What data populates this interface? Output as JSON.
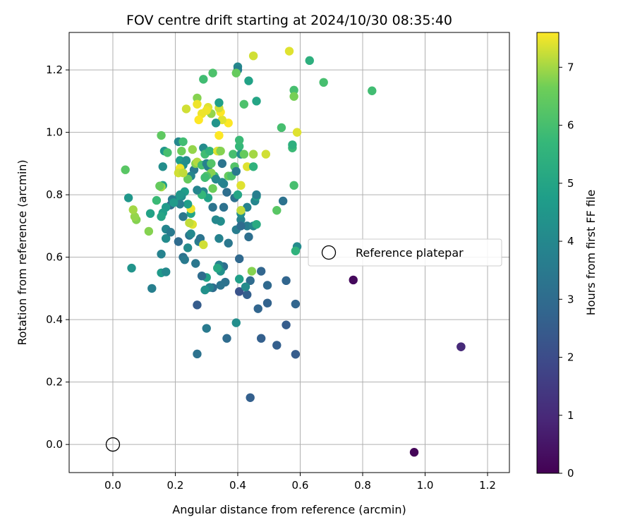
{
  "chart_data": {
    "type": "scatter",
    "title": "FOV centre drift starting at 2024/10/30 08:35:40",
    "xlabel": "Angular distance from reference (arcmin)",
    "ylabel": "Rotation from reference (arcmin)",
    "xlim": [
      -0.14,
      1.27
    ],
    "ylim": [
      -0.09,
      1.32
    ],
    "xticks": [
      0.0,
      0.2,
      0.4,
      0.6,
      0.8,
      1.0,
      1.2
    ],
    "xtick_labels": [
      "0.0",
      "0.2",
      "0.4",
      "0.6",
      "0.8",
      "1.0",
      "1.2"
    ],
    "yticks": [
      0.0,
      0.2,
      0.4,
      0.6,
      0.8,
      1.0,
      1.2
    ],
    "ytick_labels": [
      "0.0",
      "0.2",
      "0.4",
      "0.6",
      "0.8",
      "1.0",
      "1.2"
    ],
    "grid": true,
    "legend": {
      "placement": "center-right",
      "entries": [
        "Reference platepar"
      ]
    },
    "reference_point": {
      "x": 0.0,
      "y": 0.0
    },
    "colorbar": {
      "label": "Hours from first FF file",
      "colormap": "viridis",
      "range": [
        0,
        7.6
      ],
      "ticks": [
        0,
        1,
        2,
        3,
        4,
        5,
        6,
        7
      ],
      "tick_labels": [
        "0",
        "1",
        "2",
        "3",
        "4",
        "5",
        "6",
        "7"
      ]
    },
    "points": [
      [
        0.965,
        -0.025,
        0.1
      ],
      [
        0.77,
        0.527,
        0.2
      ],
      [
        1.115,
        0.313,
        0.8
      ],
      [
        1.115,
        0.313,
        1.0
      ],
      [
        0.44,
        0.15,
        2.6
      ],
      [
        0.27,
        0.29,
        3.2
      ],
      [
        0.365,
        0.34,
        3.0
      ],
      [
        0.475,
        0.34,
        2.6
      ],
      [
        0.525,
        0.318,
        2.6
      ],
      [
        0.585,
        0.289,
        2.5
      ],
      [
        0.27,
        0.447,
        2.5
      ],
      [
        0.3,
        0.372,
        3.5
      ],
      [
        0.465,
        0.435,
        2.8
      ],
      [
        0.495,
        0.453,
        2.7
      ],
      [
        0.555,
        0.383,
        2.5
      ],
      [
        0.585,
        0.45,
        2.8
      ],
      [
        0.555,
        0.525,
        2.8
      ],
      [
        0.475,
        0.555,
        2.8
      ],
      [
        0.44,
        0.525,
        3.0
      ],
      [
        0.43,
        0.48,
        2.6
      ],
      [
        0.405,
        0.49,
        2.2
      ],
      [
        0.495,
        0.51,
        2.9
      ],
      [
        0.395,
        0.39,
        4.2
      ],
      [
        0.425,
        0.505,
        4.1
      ],
      [
        0.36,
        0.52,
        3.2
      ],
      [
        0.345,
        0.51,
        3.3
      ],
      [
        0.32,
        0.502,
        3.0
      ],
      [
        0.31,
        0.503,
        3.8
      ],
      [
        0.295,
        0.495,
        4.3
      ],
      [
        0.3,
        0.535,
        4.9
      ],
      [
        0.285,
        0.54,
        3.0
      ],
      [
        0.355,
        0.57,
        3.1
      ],
      [
        0.34,
        0.575,
        3.8
      ],
      [
        0.345,
        0.555,
        4.3
      ],
      [
        0.335,
        0.565,
        5.1
      ],
      [
        0.405,
        0.53,
        4.8
      ],
      [
        0.445,
        0.555,
        6.8
      ],
      [
        0.435,
        0.665,
        3.1
      ],
      [
        0.405,
        0.595,
        2.9
      ],
      [
        0.37,
        0.645,
        3.4
      ],
      [
        0.34,
        0.66,
        3.8
      ],
      [
        0.395,
        0.688,
        3.6
      ],
      [
        0.41,
        0.72,
        3.8
      ],
      [
        0.43,
        0.7,
        3.6
      ],
      [
        0.45,
        0.7,
        3.9
      ],
      [
        0.46,
        0.705,
        5.2
      ],
      [
        0.455,
        0.78,
        3.9
      ],
      [
        0.46,
        0.795,
        4.8
      ],
      [
        0.46,
        0.8,
        3.7
      ],
      [
        0.43,
        0.76,
        3.8
      ],
      [
        0.41,
        0.74,
        4.2
      ],
      [
        0.41,
        0.75,
        7.2
      ],
      [
        0.41,
        0.7,
        3.0
      ],
      [
        0.365,
        0.808,
        3.1
      ],
      [
        0.39,
        0.79,
        3.2
      ],
      [
        0.4,
        0.8,
        5.0
      ],
      [
        0.355,
        0.76,
        3.2
      ],
      [
        0.345,
        0.715,
        4.2
      ],
      [
        0.33,
        0.72,
        4.0
      ],
      [
        0.32,
        0.76,
        3.3
      ],
      [
        0.305,
        0.79,
        4.9
      ],
      [
        0.32,
        0.82,
        6.6
      ],
      [
        0.29,
        0.81,
        4.0
      ],
      [
        0.285,
        0.8,
        5.7
      ],
      [
        0.27,
        0.815,
        3.9
      ],
      [
        0.26,
        0.88,
        3.5
      ],
      [
        0.25,
        0.86,
        3.9
      ],
      [
        0.24,
        0.85,
        6.5
      ],
      [
        0.23,
        0.81,
        4.7
      ],
      [
        0.22,
        0.795,
        4.2
      ],
      [
        0.215,
        0.8,
        4.5
      ],
      [
        0.205,
        0.785,
        4.5
      ],
      [
        0.2,
        0.78,
        4.6
      ],
      [
        0.19,
        0.785,
        3.6
      ],
      [
        0.185,
        0.767,
        3.0
      ],
      [
        0.17,
        0.76,
        4.6
      ],
      [
        0.16,
        0.742,
        4.8
      ],
      [
        0.155,
        0.73,
        5.0
      ],
      [
        0.14,
        0.782,
        5.8
      ],
      [
        0.12,
        0.74,
        4.9
      ],
      [
        0.115,
        0.683,
        6.8
      ],
      [
        0.075,
        0.72,
        6.8
      ],
      [
        0.07,
        0.73,
        6.9
      ],
      [
        0.065,
        0.752,
        7.0
      ],
      [
        0.05,
        0.79,
        4.5
      ],
      [
        0.04,
        0.88,
        6.3
      ],
      [
        0.06,
        0.565,
        4.4
      ],
      [
        0.125,
        0.5,
        3.7
      ],
      [
        0.155,
        0.55,
        4.6
      ],
      [
        0.17,
        0.553,
        4.0
      ],
      [
        0.155,
        0.61,
        3.8
      ],
      [
        0.17,
        0.66,
        4.1
      ],
      [
        0.17,
        0.69,
        3.9
      ],
      [
        0.185,
        0.68,
        3.5
      ],
      [
        0.21,
        0.65,
        3.0
      ],
      [
        0.225,
        0.6,
        3.2
      ],
      [
        0.23,
        0.592,
        3.5
      ],
      [
        0.24,
        0.63,
        4.1
      ],
      [
        0.245,
        0.67,
        3.3
      ],
      [
        0.25,
        0.675,
        4.0
      ],
      [
        0.265,
        0.58,
        3.4
      ],
      [
        0.275,
        0.65,
        3.6
      ],
      [
        0.28,
        0.66,
        3.3
      ],
      [
        0.29,
        0.64,
        7.3
      ],
      [
        0.255,
        0.705,
        7.4
      ],
      [
        0.245,
        0.71,
        7.2
      ],
      [
        0.25,
        0.74,
        5.0
      ],
      [
        0.25,
        0.755,
        7.5
      ],
      [
        0.24,
        0.77,
        4.8
      ],
      [
        0.225,
        0.73,
        3.4
      ],
      [
        0.215,
        0.77,
        3.6
      ],
      [
        0.195,
        0.775,
        4.6
      ],
      [
        0.165,
        0.94,
        4.5
      ],
      [
        0.175,
        0.935,
        6.0
      ],
      [
        0.16,
        0.89,
        4.2
      ],
      [
        0.16,
        0.83,
        4.8
      ],
      [
        0.155,
        0.825,
        7.0
      ],
      [
        0.15,
        0.828,
        6.5
      ],
      [
        0.155,
        0.99,
        6.4
      ],
      [
        0.21,
        0.97,
        4.0
      ],
      [
        0.225,
        0.97,
        5.9
      ],
      [
        0.22,
        0.94,
        6.6
      ],
      [
        0.215,
        0.91,
        4.7
      ],
      [
        0.225,
        0.895,
        4.3
      ],
      [
        0.215,
        0.885,
        7.5
      ],
      [
        0.21,
        0.87,
        7.3
      ],
      [
        0.225,
        0.87,
        7.2
      ],
      [
        0.235,
        0.91,
        4.2
      ],
      [
        0.255,
        0.945,
        6.9
      ],
      [
        0.265,
        0.9,
        6.8
      ],
      [
        0.27,
        0.905,
        7.1
      ],
      [
        0.285,
        0.895,
        6.0
      ],
      [
        0.29,
        0.95,
        4.1
      ],
      [
        0.295,
        0.93,
        5.9
      ],
      [
        0.3,
        0.9,
        3.8
      ],
      [
        0.305,
        0.89,
        3.7
      ],
      [
        0.31,
        0.94,
        5.6
      ],
      [
        0.315,
        0.9,
        6.2
      ],
      [
        0.325,
        0.86,
        5.8
      ],
      [
        0.315,
        0.87,
        6.8
      ],
      [
        0.3,
        0.86,
        6.2
      ],
      [
        0.295,
        0.855,
        5.9
      ],
      [
        0.33,
        0.85,
        4.0
      ],
      [
        0.34,
        0.94,
        3.9
      ],
      [
        0.335,
        0.94,
        7.4
      ],
      [
        0.345,
        0.94,
        6.8
      ],
      [
        0.35,
        0.9,
        3.3
      ],
      [
        0.35,
        0.84,
        4.0
      ],
      [
        0.355,
        0.835,
        3.8
      ],
      [
        0.37,
        0.86,
        6.5
      ],
      [
        0.38,
        0.86,
        6.1
      ],
      [
        0.385,
        0.93,
        6.0
      ],
      [
        0.39,
        0.89,
        6.2
      ],
      [
        0.395,
        0.875,
        3.5
      ],
      [
        0.405,
        0.955,
        5.7
      ],
      [
        0.405,
        0.975,
        5.8
      ],
      [
        0.41,
        0.93,
        4.2
      ],
      [
        0.42,
        0.93,
        6.5
      ],
      [
        0.43,
        0.89,
        7.4
      ],
      [
        0.41,
        0.83,
        7.4
      ],
      [
        0.45,
        0.89,
        5.5
      ],
      [
        0.45,
        0.93,
        7.0
      ],
      [
        0.49,
        0.93,
        7.3
      ],
      [
        0.525,
        0.75,
        6.3
      ],
      [
        0.545,
        0.78,
        3.2
      ],
      [
        0.58,
        0.83,
        6.0
      ],
      [
        0.575,
        0.95,
        5.8
      ],
      [
        0.575,
        0.96,
        5.4
      ],
      [
        0.59,
        1.0,
        7.4
      ],
      [
        0.54,
        1.015,
        6.0
      ],
      [
        0.58,
        1.135,
        6.0
      ],
      [
        0.58,
        1.115,
        6.7
      ],
      [
        0.59,
        0.634,
        4.1
      ],
      [
        0.585,
        0.62,
        5.5
      ],
      [
        0.565,
        1.26,
        7.4
      ],
      [
        0.63,
        1.23,
        5.4
      ],
      [
        0.675,
        1.16,
        6.0
      ],
      [
        0.83,
        1.133,
        5.9
      ],
      [
        0.45,
        1.245,
        7.3
      ],
      [
        0.435,
        1.165,
        4.9
      ],
      [
        0.46,
        1.1,
        5.0
      ],
      [
        0.42,
        1.09,
        6.1
      ],
      [
        0.4,
        1.21,
        4.0
      ],
      [
        0.4,
        1.2,
        3.7
      ],
      [
        0.395,
        1.19,
        6.5
      ],
      [
        0.37,
        1.03,
        7.6
      ],
      [
        0.35,
        1.04,
        7.4
      ],
      [
        0.345,
        1.065,
        7.6
      ],
      [
        0.34,
        1.078,
        7.3
      ],
      [
        0.34,
        1.095,
        4.8
      ],
      [
        0.33,
        1.03,
        4.4
      ],
      [
        0.32,
        1.19,
        6.1
      ],
      [
        0.315,
        1.06,
        6.9
      ],
      [
        0.305,
        1.08,
        7.4
      ],
      [
        0.3,
        1.07,
        7.5
      ],
      [
        0.29,
        1.17,
        5.9
      ],
      [
        0.285,
        1.06,
        7.5
      ],
      [
        0.275,
        1.04,
        7.6
      ],
      [
        0.27,
        1.11,
        6.8
      ],
      [
        0.27,
        1.09,
        7.5
      ],
      [
        0.235,
        1.075,
        7.3
      ],
      [
        0.34,
        0.99,
        7.6
      ]
    ]
  }
}
